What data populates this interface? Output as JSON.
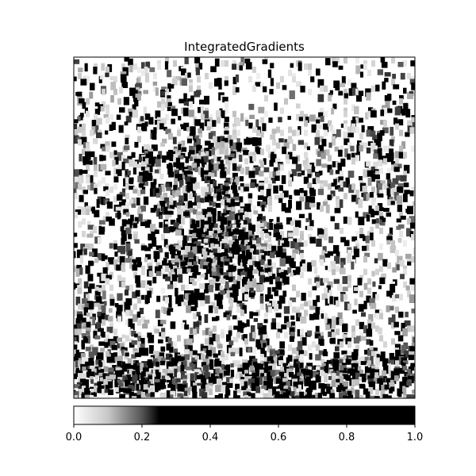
{
  "chart_data": {
    "type": "heatmap",
    "title": "IntegratedGradients",
    "xlabel": "",
    "ylabel": "",
    "axes_ticks": "none",
    "cmap": "gray_r",
    "colorbar": {
      "orientation": "horizontal",
      "placement": "bottom",
      "range": [
        0.0,
        1.0
      ],
      "ticks": [
        0.0,
        0.2,
        0.4,
        0.6,
        0.8,
        1.0
      ],
      "tick_labels": [
        "0.0",
        "0.2",
        "0.4",
        "0.6",
        "0.8",
        "1.0"
      ],
      "saturation_point": 0.25
    },
    "image_description_free": true
  },
  "colors": {
    "background": "#ffffff",
    "frame": "#000000",
    "low": "#ffffff",
    "high": "#000000"
  }
}
